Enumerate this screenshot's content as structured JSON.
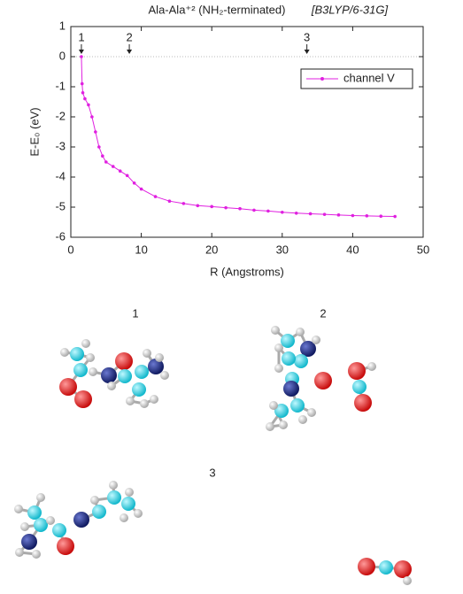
{
  "chart_data": {
    "type": "line",
    "title": "Ala-Ala⁺² (NH₂-terminated)",
    "subtitle": "[B3LYP/6-31G]",
    "x_label": "R (Angstroms)",
    "y_label": "E-E₀ (eV)",
    "xlim": [
      0,
      50
    ],
    "ylim": [
      -6,
      1
    ],
    "xticks": [
      0,
      10,
      20,
      30,
      40,
      50
    ],
    "yticks": [
      -6,
      -5,
      -4,
      -3,
      -2,
      -1,
      0,
      1
    ],
    "reference_line": 0,
    "legend": "upper right",
    "annotations": [
      {
        "text": "1",
        "x": 1.5
      },
      {
        "text": "2",
        "x": 8.3
      },
      {
        "text": "3",
        "x": 33.5
      }
    ],
    "series": [
      {
        "name": "channel V",
        "color": "#e020e0",
        "x": [
          1.5,
          1.6,
          1.7,
          2,
          2.5,
          3,
          3.5,
          4,
          4.5,
          5,
          6,
          7,
          8,
          9,
          10,
          12,
          14,
          16,
          18,
          20,
          22,
          24,
          26,
          28,
          30,
          32,
          34,
          36,
          38,
          40,
          42,
          44,
          46
        ],
        "values": [
          0,
          -0.9,
          -1.2,
          -1.4,
          -1.6,
          -2.0,
          -2.5,
          -3.0,
          -3.3,
          -3.5,
          -3.65,
          -3.8,
          -3.95,
          -4.2,
          -4.4,
          -4.65,
          -4.8,
          -4.88,
          -4.95,
          -4.98,
          -5.02,
          -5.05,
          -5.1,
          -5.13,
          -5.17,
          -5.2,
          -5.22,
          -5.24,
          -5.26,
          -5.28,
          -5.29,
          -5.3,
          -5.31
        ]
      }
    ]
  },
  "structures": [
    {
      "label": "1"
    },
    {
      "label": "2"
    },
    {
      "label": "3"
    }
  ]
}
